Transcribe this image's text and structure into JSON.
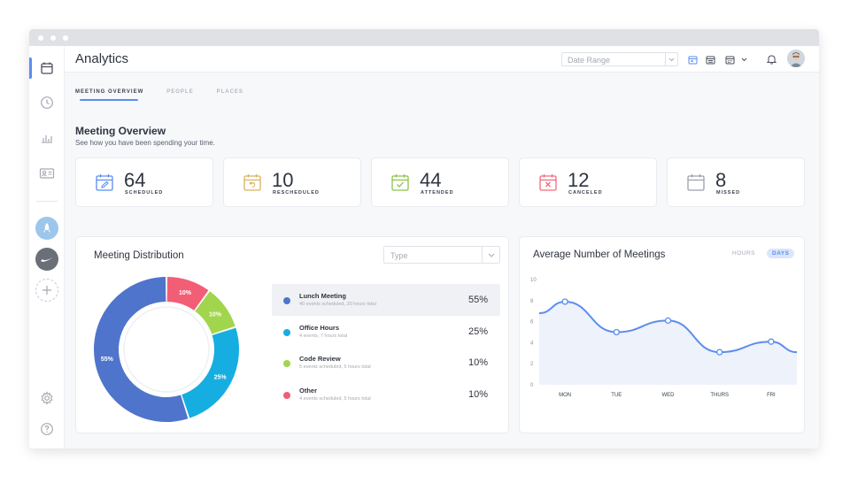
{
  "app": {
    "title": "Analytics"
  },
  "topbar": {
    "date_range_placeholder": "Date Range"
  },
  "tabs": [
    {
      "label": "MEETING OVERVIEW"
    },
    {
      "label": "PEOPLE"
    },
    {
      "label": "PLACES"
    }
  ],
  "overview": {
    "title": "Meeting Overview",
    "subtitle": "See how you have been spending your time."
  },
  "stats": [
    {
      "value": "64",
      "label": "SCHEDULED",
      "color": "#5b8def",
      "icon": "calendar-edit-icon"
    },
    {
      "value": "10",
      "label": "RESCHEDULED",
      "color": "#d9b25f",
      "icon": "calendar-undo-icon"
    },
    {
      "value": "44",
      "label": "ATTENDED",
      "color": "#8cc34a",
      "icon": "calendar-check-icon"
    },
    {
      "value": "12",
      "label": "CANCELED",
      "color": "#f06a7a",
      "icon": "calendar-x-icon"
    },
    {
      "value": "8",
      "label": "MISSED",
      "color": "#9aa0aa",
      "icon": "calendar-blank-icon"
    }
  ],
  "distribution": {
    "title": "Meeting Distribution",
    "type_placeholder": "Type",
    "items": [
      {
        "name": "Lunch Meeting",
        "sub": "40 events scheduled, 20 hours total",
        "pct": "55%",
        "label": "55%",
        "value": 55,
        "color": "#4f74cc"
      },
      {
        "name": "Office Hours",
        "sub": "4 events, 7 hours total",
        "pct": "25%",
        "label": "25%",
        "value": 25,
        "color": "#16aee0"
      },
      {
        "name": "Code Review",
        "sub": "5 events scheduled, 5 hours total",
        "pct": "10%",
        "label": "10%",
        "value": 10,
        "color": "#a2d54e"
      },
      {
        "name": "Other",
        "sub": "4 events scheduled, 5 hours total",
        "pct": "10%",
        "label": "10%",
        "value": 10,
        "color": "#f25e76"
      }
    ]
  },
  "average": {
    "title": "Average Number of Meetings",
    "toggle_hours": "HOURS",
    "toggle_days": "DAYS"
  },
  "chart_data": {
    "type": "area",
    "title": "Average Number of Meetings",
    "x": [
      "MON",
      "TUE",
      "WED",
      "THURS",
      "FRI"
    ],
    "series": [
      {
        "values": [
          7.9,
          5.0,
          6.1,
          3.1,
          4.1
        ]
      }
    ],
    "ylim": [
      0,
      10
    ],
    "yticks": [
      "10",
      "8",
      "6",
      "4",
      "2",
      "0"
    ],
    "grid": false,
    "color": "#5b8def"
  },
  "colors": {
    "accent": "#5b8def"
  }
}
